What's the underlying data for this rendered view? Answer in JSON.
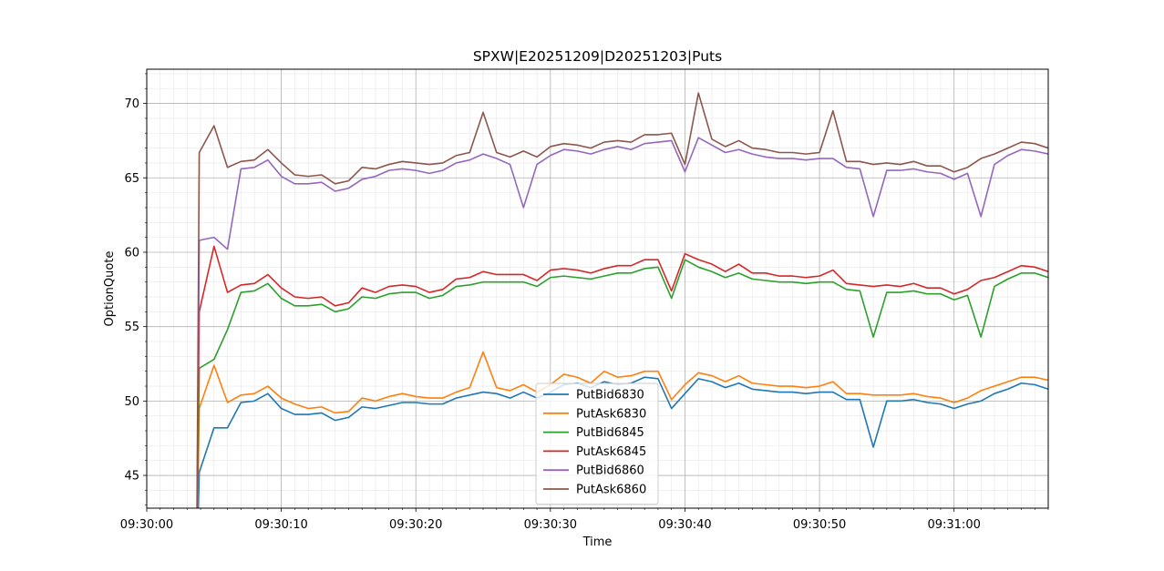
{
  "chart_data": {
    "type": "line",
    "title": "SPXW|E20251209|D20251203|Puts",
    "xlabel": "Time",
    "ylabel": "OptionQuote",
    "xlim": [
      0,
      67
    ],
    "ylim": [
      42.8,
      72.3
    ],
    "grid": true,
    "minor_grid": true,
    "legend_position": "lower-center",
    "x_ticks": [
      {
        "value": 0,
        "label": "09:30:00"
      },
      {
        "value": 10,
        "label": "09:30:10"
      },
      {
        "value": 20,
        "label": "09:30:20"
      },
      {
        "value": 30,
        "label": "09:30:30"
      },
      {
        "value": 40,
        "label": "09:30:40"
      },
      {
        "value": 50,
        "label": "09:30:50"
      },
      {
        "value": 60,
        "label": "09:31:00"
      }
    ],
    "y_ticks": [
      {
        "value": 45,
        "label": "45"
      },
      {
        "value": 50,
        "label": "50"
      },
      {
        "value": 55,
        "label": "55"
      },
      {
        "value": 60,
        "label": "60"
      },
      {
        "value": 65,
        "label": "65"
      },
      {
        "value": 70,
        "label": "70"
      }
    ],
    "x": [
      3.7,
      3.9,
      5,
      6,
      7,
      8,
      9,
      10,
      11,
      12,
      13,
      14,
      15,
      16,
      17,
      18,
      19,
      20,
      21,
      22,
      23,
      24,
      25,
      26,
      27,
      28,
      29,
      30,
      31,
      32,
      33,
      34,
      35,
      36,
      37,
      38,
      39,
      40,
      41,
      42,
      43,
      44,
      45,
      46,
      47,
      48,
      49,
      50,
      51,
      52,
      53,
      54,
      55,
      56,
      57,
      58,
      59,
      60,
      61,
      62,
      63,
      64,
      65,
      66,
      67
    ],
    "series": [
      {
        "name": "PutBid6830",
        "color": "#1f77b4",
        "values": [
          38,
          45.2,
          48.2,
          48.2,
          49.9,
          50.0,
          50.5,
          49.5,
          49.1,
          49.1,
          49.2,
          48.7,
          48.9,
          49.6,
          49.5,
          49.7,
          49.9,
          49.9,
          49.8,
          49.8,
          50.2,
          50.4,
          50.6,
          50.5,
          50.2,
          50.6,
          50.2,
          50.6,
          51.1,
          51.2,
          50.9,
          51.3,
          51.1,
          51.2,
          51.6,
          51.5,
          49.5,
          50.5,
          51.5,
          51.3,
          50.9,
          51.2,
          50.8,
          50.7,
          50.6,
          50.6,
          50.5,
          50.6,
          50.6,
          50.1,
          50.1,
          46.9,
          50.0,
          50.0,
          50.1,
          49.9,
          49.8,
          49.5,
          49.8,
          50.0,
          50.5,
          50.8,
          51.2,
          51.1,
          50.8
        ]
      },
      {
        "name": "PutAsk6830",
        "color": "#ff7f0e",
        "values": [
          38,
          49.5,
          52.4,
          49.9,
          50.4,
          50.5,
          51.0,
          50.2,
          49.8,
          49.5,
          49.6,
          49.2,
          49.3,
          50.2,
          50.0,
          50.3,
          50.5,
          50.3,
          50.2,
          50.2,
          50.6,
          50.9,
          53.3,
          50.9,
          50.7,
          51.1,
          50.6,
          51.1,
          51.8,
          51.6,
          51.2,
          52.0,
          51.6,
          51.7,
          52.0,
          52.0,
          50.1,
          51.1,
          51.9,
          51.7,
          51.3,
          51.7,
          51.2,
          51.1,
          51.0,
          51.0,
          50.9,
          51.0,
          51.3,
          50.5,
          50.5,
          50.4,
          50.4,
          50.4,
          50.5,
          50.3,
          50.2,
          49.9,
          50.2,
          50.7,
          51.0,
          51.3,
          51.6,
          51.6,
          51.4
        ]
      },
      {
        "name": "PutBid6845",
        "color": "#2ca02c",
        "values": [
          38,
          52.2,
          52.8,
          54.8,
          57.3,
          57.4,
          57.9,
          56.9,
          56.4,
          56.4,
          56.5,
          56.0,
          56.2,
          57.0,
          56.9,
          57.2,
          57.3,
          57.3,
          56.9,
          57.1,
          57.7,
          57.8,
          58.0,
          58.0,
          58.0,
          58.0,
          57.7,
          58.3,
          58.4,
          58.3,
          58.2,
          58.4,
          58.6,
          58.6,
          58.9,
          59.0,
          56.9,
          59.5,
          59.0,
          58.7,
          58.3,
          58.6,
          58.2,
          58.1,
          58.0,
          58.0,
          57.9,
          58.0,
          58.0,
          57.5,
          57.4,
          54.3,
          57.3,
          57.3,
          57.4,
          57.2,
          57.2,
          56.8,
          57.1,
          54.3,
          57.7,
          58.2,
          58.6,
          58.6,
          58.3
        ]
      },
      {
        "name": "PutAsk6845",
        "color": "#d62728",
        "values": [
          38,
          56.0,
          60.4,
          57.3,
          57.8,
          57.9,
          58.5,
          57.6,
          57.0,
          56.9,
          57.0,
          56.4,
          56.6,
          57.6,
          57.3,
          57.7,
          57.8,
          57.7,
          57.3,
          57.5,
          58.2,
          58.3,
          58.7,
          58.5,
          58.5,
          58.5,
          58.1,
          58.8,
          58.9,
          58.8,
          58.6,
          58.9,
          59.1,
          59.1,
          59.5,
          59.5,
          57.4,
          59.9,
          59.5,
          59.2,
          58.7,
          59.2,
          58.6,
          58.6,
          58.4,
          58.4,
          58.3,
          58.4,
          58.8,
          57.9,
          57.8,
          57.7,
          57.8,
          57.7,
          57.9,
          57.6,
          57.6,
          57.2,
          57.5,
          58.1,
          58.3,
          58.7,
          59.1,
          59.0,
          58.7
        ]
      },
      {
        "name": "PutBid6860",
        "color": "#9467bd",
        "values": [
          38,
          60.8,
          61.0,
          60.2,
          65.6,
          65.7,
          66.2,
          65.1,
          64.6,
          64.6,
          64.7,
          64.1,
          64.3,
          64.9,
          65.1,
          65.5,
          65.6,
          65.5,
          65.3,
          65.5,
          66.0,
          66.2,
          66.6,
          66.3,
          65.9,
          63.0,
          65.9,
          66.5,
          66.9,
          66.8,
          66.6,
          66.9,
          67.1,
          66.9,
          67.3,
          67.4,
          67.5,
          65.4,
          67.7,
          67.2,
          66.7,
          66.9,
          66.6,
          66.4,
          66.3,
          66.3,
          66.2,
          66.3,
          66.3,
          65.7,
          65.6,
          62.4,
          65.5,
          65.5,
          65.6,
          65.4,
          65.3,
          64.9,
          65.3,
          62.4,
          65.9,
          66.5,
          66.9,
          66.8,
          66.6
        ]
      },
      {
        "name": "PutAsk6860",
        "color": "#8c564b",
        "values": [
          38,
          66.7,
          68.5,
          65.7,
          66.1,
          66.2,
          66.9,
          66.0,
          65.2,
          65.1,
          65.2,
          64.6,
          64.8,
          65.7,
          65.6,
          65.9,
          66.1,
          66.0,
          65.9,
          66.0,
          66.5,
          66.7,
          69.4,
          66.7,
          66.4,
          66.8,
          66.4,
          67.1,
          67.3,
          67.2,
          67.0,
          67.4,
          67.5,
          67.4,
          67.9,
          67.9,
          68.0,
          65.9,
          70.7,
          67.6,
          67.1,
          67.5,
          67.0,
          66.9,
          66.7,
          66.7,
          66.6,
          66.7,
          69.5,
          66.1,
          66.1,
          65.9,
          66.0,
          65.9,
          66.1,
          65.8,
          65.8,
          65.4,
          65.7,
          66.3,
          66.6,
          67.0,
          67.4,
          67.3,
          67.0
        ]
      }
    ]
  }
}
